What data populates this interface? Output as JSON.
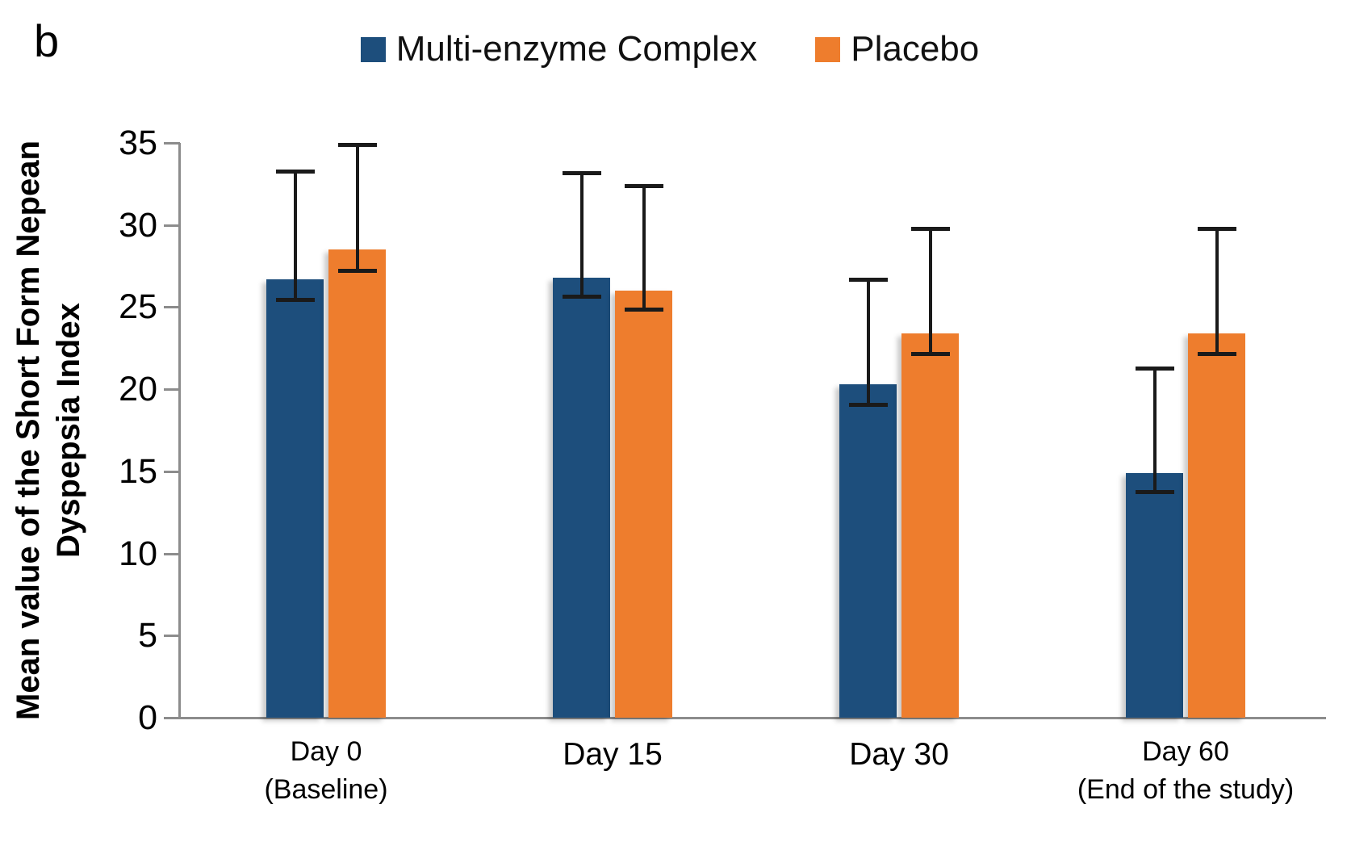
{
  "panel_label": "b",
  "legend": {
    "position": "top-center",
    "items": [
      {
        "label": "Multi-enzyme Complex",
        "color": "#1D4E7C"
      },
      {
        "label": "Placebo",
        "color": "#EE7D2D"
      }
    ]
  },
  "chart_data": {
    "type": "bar",
    "title": "",
    "xlabel": "",
    "ylabel": "Mean value of the Short Form Nepean Dyspepsia Index",
    "ylabel_lines": [
      "Mean value of the Short Form Nepean",
      "Dyspepsia Index"
    ],
    "ylim": [
      0,
      35
    ],
    "yticks": [
      0,
      5,
      10,
      15,
      20,
      25,
      30,
      35
    ],
    "grid": false,
    "legend_position": "top-center",
    "categories": [
      "Day 0 (Baseline)",
      "Day 15",
      "Day 30",
      "Day 60 (End of the study)"
    ],
    "categories_lines": [
      [
        "Day 0",
        "(Baseline)"
      ],
      [
        "Day 15"
      ],
      [
        "Day 30"
      ],
      [
        "Day 60",
        "(End of the study)"
      ]
    ],
    "series": [
      {
        "name": "Multi-enzyme Complex",
        "color": "#1D4E7C",
        "values": [
          26.7,
          26.8,
          20.3,
          14.9
        ],
        "error_upper": [
          33.3,
          33.2,
          26.7,
          21.3
        ],
        "error_lower": [
          25.4,
          25.6,
          19.0,
          13.7
        ]
      },
      {
        "name": "Placebo",
        "color": "#EE7D2D",
        "values": [
          28.5,
          26.0,
          23.4,
          23.4
        ],
        "error_upper": [
          34.9,
          32.4,
          29.8,
          29.8
        ],
        "error_lower": [
          27.2,
          24.8,
          22.1,
          22.1
        ]
      }
    ]
  },
  "colors": {
    "background": "#FFFFFF",
    "axis": "#8C8C8C",
    "error_bar": "#1A1A1A",
    "text": "#000000"
  }
}
